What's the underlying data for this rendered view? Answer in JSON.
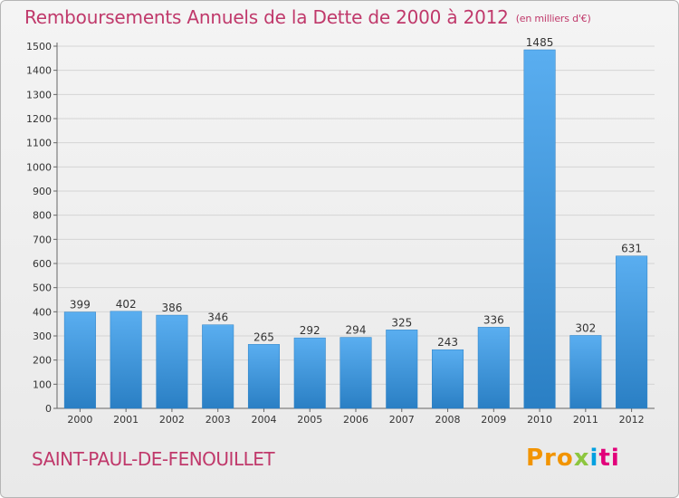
{
  "header": {
    "title": "Remboursements Annuels de la Dette de 2000 à 2012",
    "subtitle": "(en milliers d'€)"
  },
  "footer": {
    "commune": "SAINT-PAUL-DE-FENOUILLET",
    "logo": [
      "Pro",
      "x",
      "i",
      "ti"
    ]
  },
  "colors": {
    "title": "#c0396b",
    "bar_light": "#5aaef0",
    "bar_dark": "#2a7fc4",
    "grid": "#d4d4d4"
  },
  "chart_data": {
    "type": "bar",
    "title": "Remboursements Annuels de la Dette de 2000 à 2012",
    "subtitle": "(en milliers d'€)",
    "categories": [
      "2000",
      "2001",
      "2002",
      "2003",
      "2004",
      "2005",
      "2006",
      "2007",
      "2008",
      "2009",
      "2010",
      "2011",
      "2012"
    ],
    "values": [
      399,
      402,
      386,
      346,
      265,
      292,
      294,
      325,
      243,
      336,
      1485,
      302,
      631
    ],
    "ylim": [
      0,
      1500
    ],
    "yticks": [
      0,
      100,
      200,
      300,
      400,
      500,
      600,
      700,
      800,
      900,
      1000,
      1100,
      1200,
      1300,
      1400,
      1500
    ],
    "grid": true,
    "data_labels": true
  }
}
